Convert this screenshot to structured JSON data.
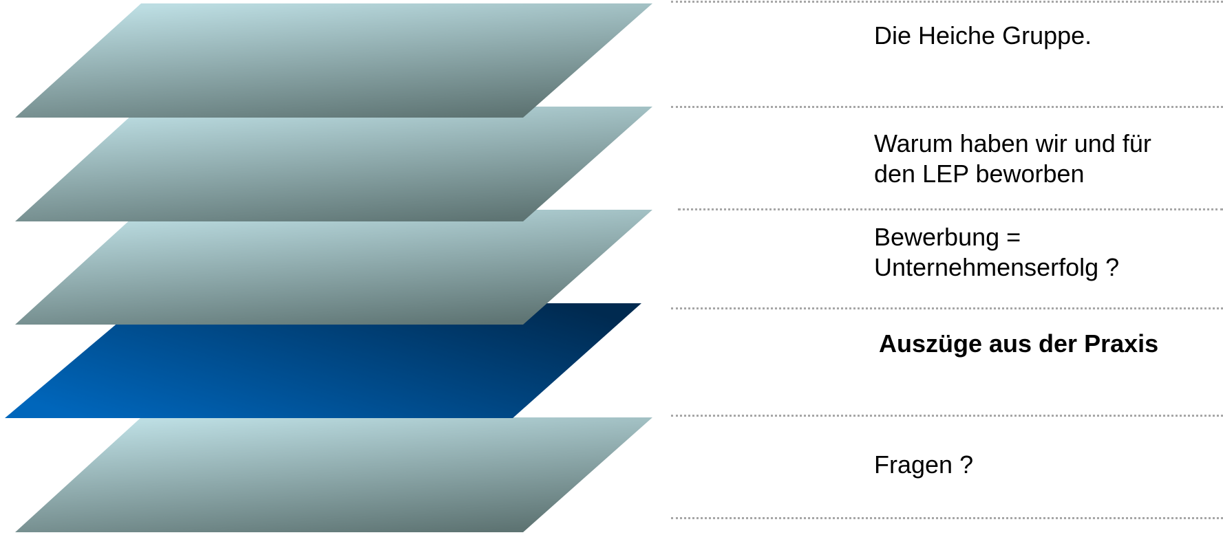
{
  "agenda": {
    "items": [
      {
        "label_lines": [
          "Die Heiche Gruppe."
        ],
        "active": false
      },
      {
        "label_lines": [
          "Warum haben wir und für",
          "den LEP beworben"
        ],
        "active": false
      },
      {
        "label_lines": [
          "Bewerbung =",
          "Unternehmenserfolg ?"
        ],
        "active": false
      },
      {
        "label_lines": [
          "Auszüge aus der Praxis"
        ],
        "active": true
      },
      {
        "label_lines": [
          "Fragen ?"
        ],
        "active": false
      }
    ]
  },
  "colors": {
    "inactive_layer_light": "#bcdde2",
    "inactive_layer_dark": "#5e7473",
    "active_layer_light": "#0066bb",
    "active_layer_dark": "#002a50",
    "divider": "#a6a6a6",
    "text": "#000000"
  }
}
